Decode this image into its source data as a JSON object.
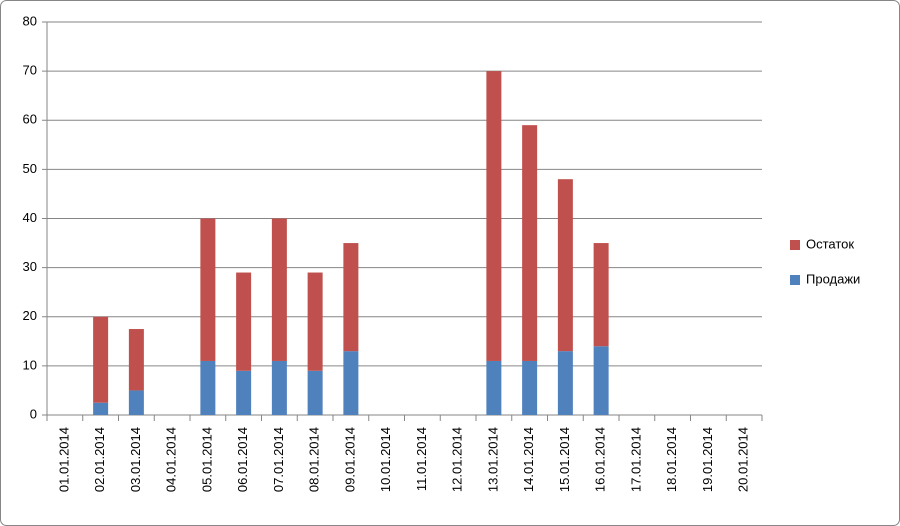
{
  "chart_data": {
    "type": "stacked_bar",
    "categories": [
      "01.01.2014",
      "02.01.2014",
      "03.01.2014",
      "04.01.2014",
      "05.01.2014",
      "06.01.2014",
      "07.01.2014",
      "08.01.2014",
      "09.01.2014",
      "10.01.2014",
      "11.01.2014",
      "12.01.2014",
      "13.01.2014",
      "14.01.2014",
      "15.01.2014",
      "16.01.2014",
      "17.01.2014",
      "18.01.2014",
      "19.01.2014",
      "20.01.2014"
    ],
    "series": [
      {
        "name": "Продажи",
        "color": "#4f81bd",
        "values": [
          0,
          2.5,
          5,
          0,
          11,
          9,
          11,
          9,
          13,
          0,
          0,
          0,
          11,
          11,
          13,
          14,
          0,
          0,
          0,
          0
        ]
      },
      {
        "name": "Остаток",
        "color": "#c0504d",
        "values": [
          0,
          17.5,
          12.5,
          0,
          29,
          20,
          29,
          20,
          22,
          0,
          0,
          0,
          59,
          48,
          35,
          21,
          0,
          0,
          0,
          0
        ]
      }
    ],
    "ylim": [
      0,
      80
    ],
    "yticks": [
      0,
      10,
      20,
      30,
      40,
      50,
      60,
      70,
      80
    ],
    "grid": true,
    "legend": "right"
  }
}
